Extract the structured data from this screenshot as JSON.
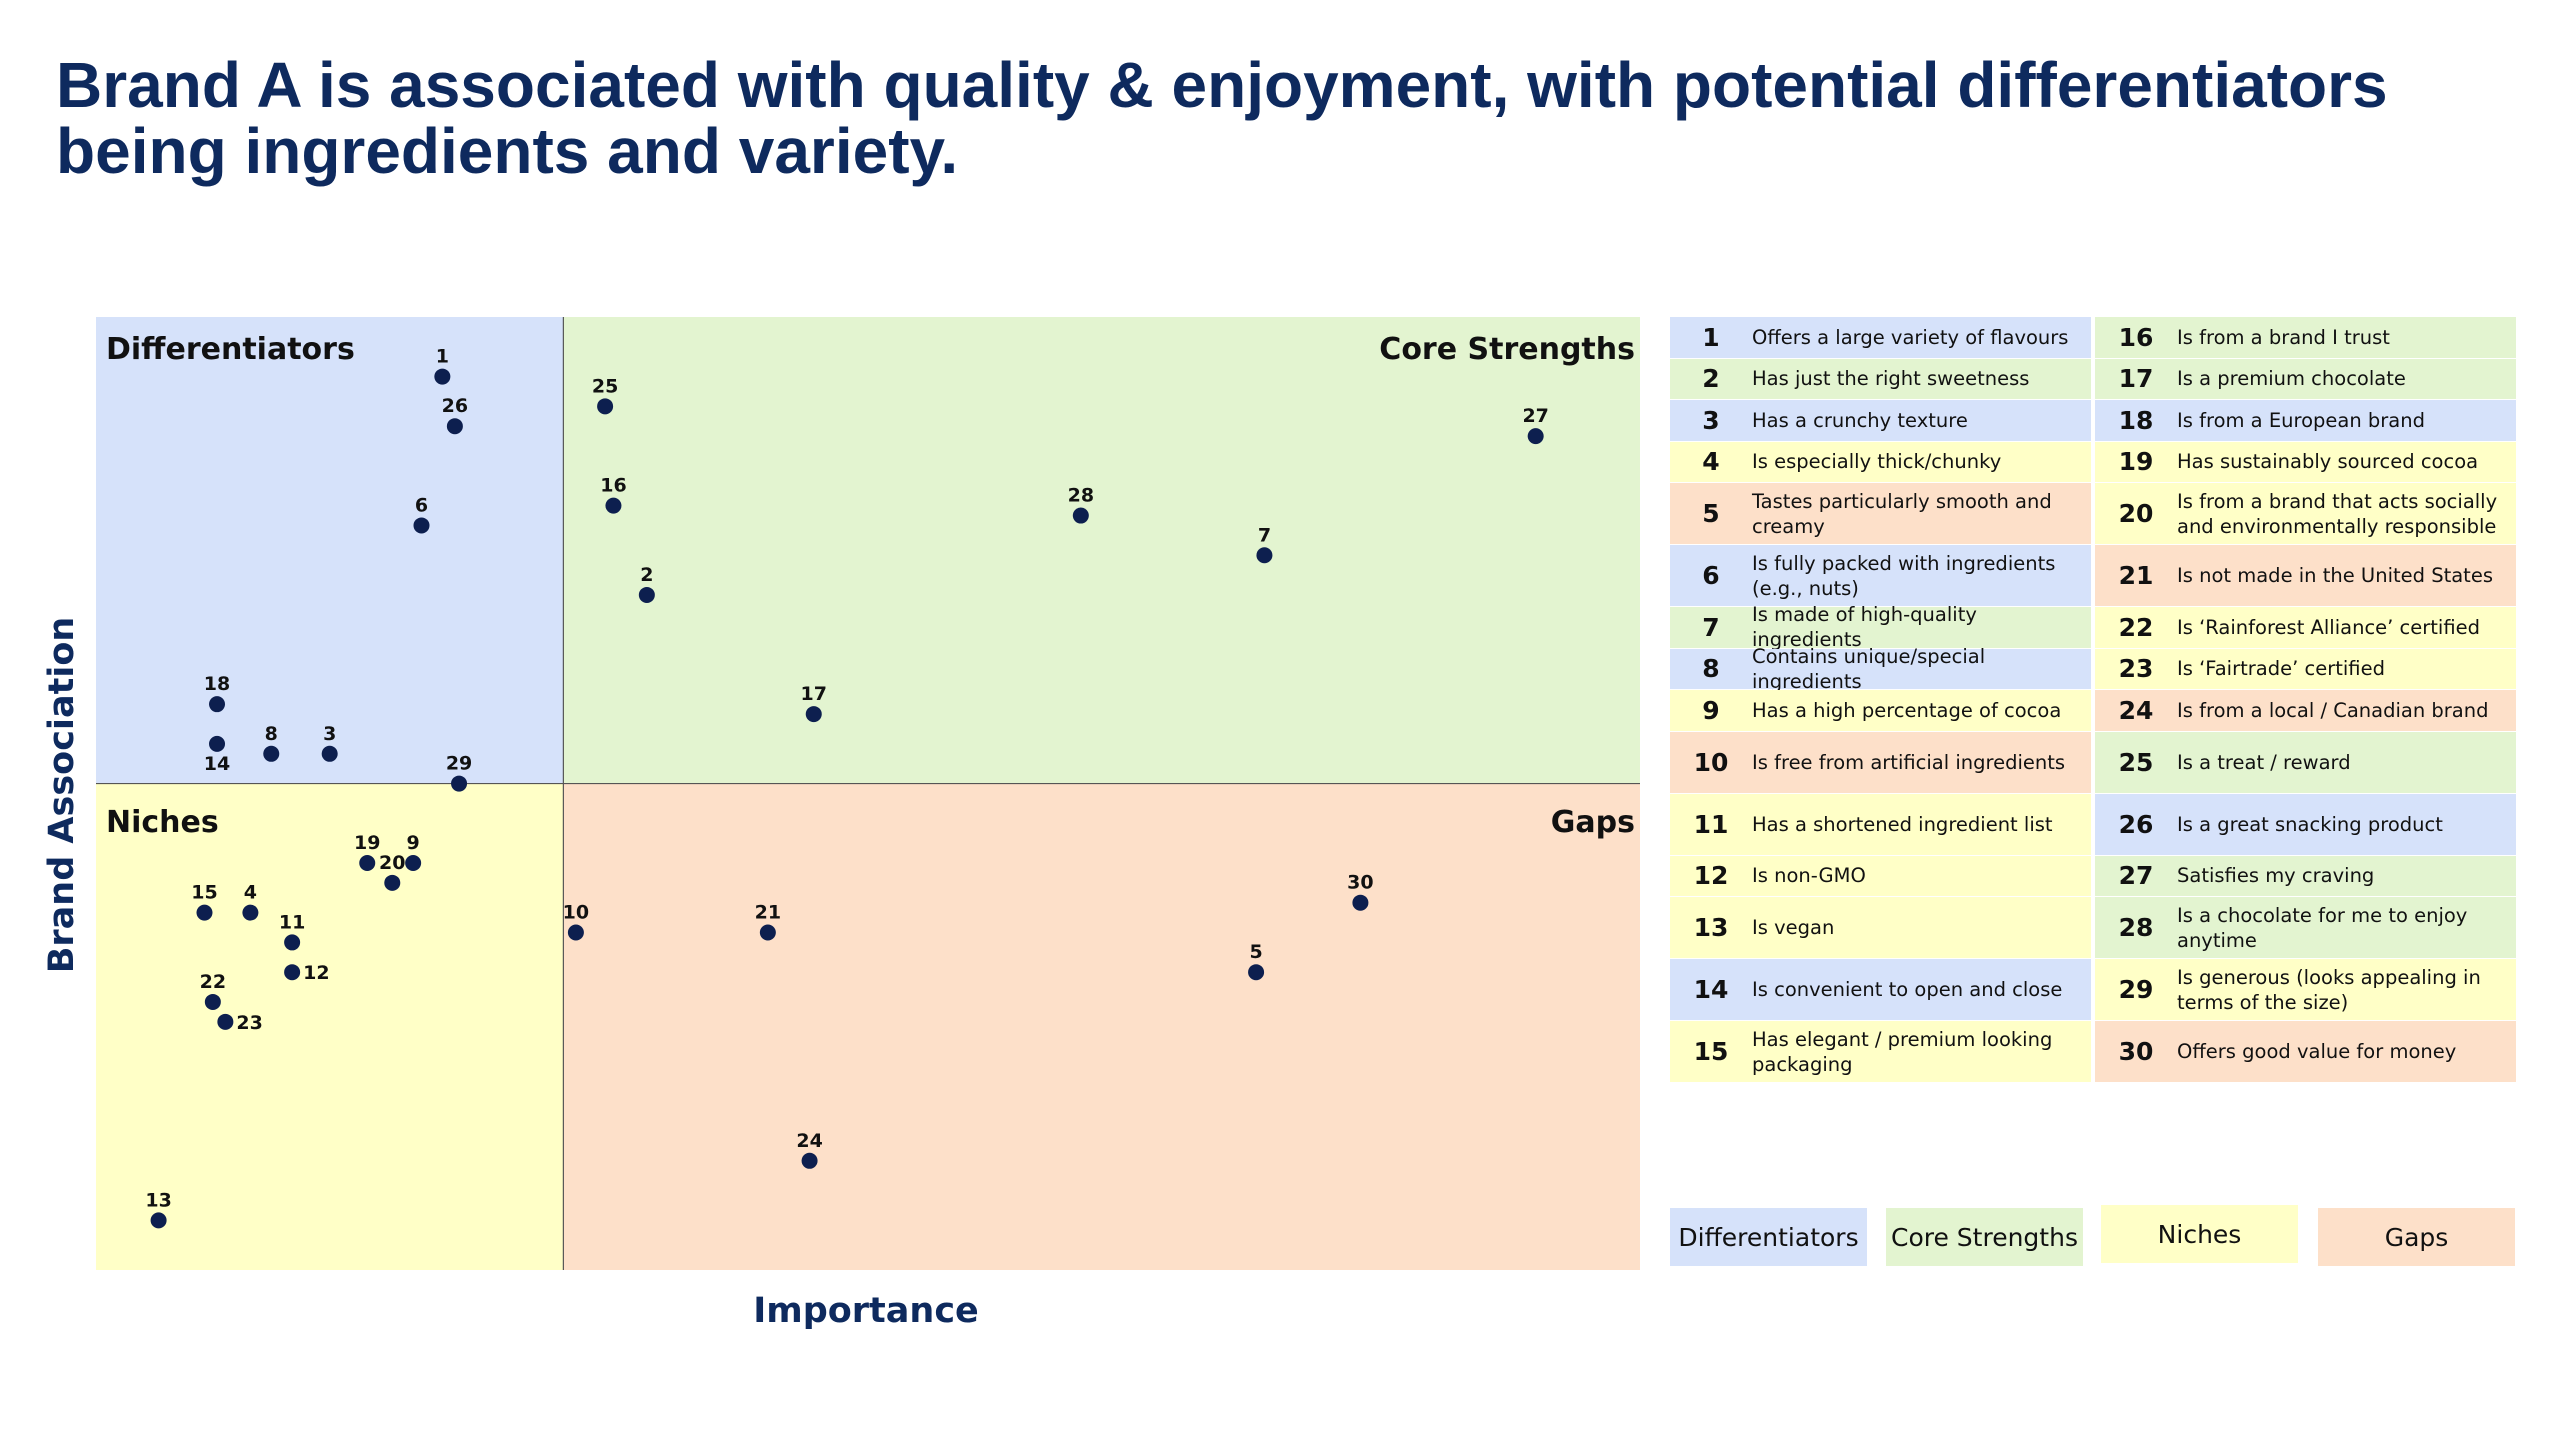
{
  "title": "Brand A is associated with quality & enjoyment, with potential differentiators being ingredients and variety.",
  "colors": {
    "differentiators": "#d6e2fa",
    "core_strengths": "#e3f4d0",
    "niches": "#ffffc7",
    "gaps": "#fde0c9",
    "point": "#0d1f4f",
    "title": "#0e2a5e"
  },
  "chart_data": {
    "type": "scatter",
    "title": "",
    "xlabel": "Importance",
    "ylabel": "Brand Association",
    "quadrant_labels": {
      "top_left": "Differentiators",
      "top_right": "Core Strengths",
      "bottom_left": "Niches",
      "bottom_right": "Gaps"
    },
    "grid": false,
    "points": [
      {
        "id": "1",
        "x": 8.3,
        "y": 9.0
      },
      {
        "id": "2",
        "x": 13.2,
        "y": 6.8
      },
      {
        "id": "3",
        "x": 5.6,
        "y": 5.2
      },
      {
        "id": "4",
        "x": 3.7,
        "y": 3.6
      },
      {
        "id": "5",
        "x": 27.8,
        "y": 3.0
      },
      {
        "id": "6",
        "x": 7.8,
        "y": 7.5
      },
      {
        "id": "7",
        "x": 28.0,
        "y": 7.2
      },
      {
        "id": "8",
        "x": 4.2,
        "y": 5.2
      },
      {
        "id": "9",
        "x": 7.6,
        "y": 4.1
      },
      {
        "id": "10",
        "x": 11.5,
        "y": 3.4
      },
      {
        "id": "11",
        "x": 4.7,
        "y": 3.3
      },
      {
        "id": "12",
        "x": 4.7,
        "y": 3.0
      },
      {
        "id": "13",
        "x": 1.5,
        "y": 0.5
      },
      {
        "id": "14",
        "x": 2.9,
        "y": 5.3
      },
      {
        "id": "15",
        "x": 2.6,
        "y": 3.6
      },
      {
        "id": "16",
        "x": 12.4,
        "y": 7.7
      },
      {
        "id": "17",
        "x": 17.2,
        "y": 5.6
      },
      {
        "id": "18",
        "x": 2.9,
        "y": 5.7
      },
      {
        "id": "19",
        "x": 6.5,
        "y": 4.1
      },
      {
        "id": "20",
        "x": 7.1,
        "y": 3.9
      },
      {
        "id": "21",
        "x": 16.1,
        "y": 3.4
      },
      {
        "id": "22",
        "x": 2.8,
        "y": 2.7
      },
      {
        "id": "23",
        "x": 3.1,
        "y": 2.5
      },
      {
        "id": "24",
        "x": 17.1,
        "y": 1.1
      },
      {
        "id": "25",
        "x": 12.2,
        "y": 8.7
      },
      {
        "id": "26",
        "x": 8.6,
        "y": 8.5
      },
      {
        "id": "27",
        "x": 34.5,
        "y": 8.4
      },
      {
        "id": "28",
        "x": 23.6,
        "y": 7.6
      },
      {
        "id": "29",
        "x": 8.7,
        "y": 4.9
      },
      {
        "id": "30",
        "x": 30.3,
        "y": 3.7
      }
    ],
    "xlim": [
      0,
      37
    ],
    "ylim": [
      0,
      9.6
    ],
    "x_divider": 11.2,
    "y_divider": 4.9
  },
  "legend_items": [
    {
      "num": "1",
      "text": "Offers a large variety of flavours",
      "group": "differentiators"
    },
    {
      "num": "2",
      "text": "Has just the right sweetness",
      "group": "core_strengths"
    },
    {
      "num": "3",
      "text": "Has a crunchy texture",
      "group": "differentiators"
    },
    {
      "num": "4",
      "text": "Is especially thick/chunky",
      "group": "niches"
    },
    {
      "num": "5",
      "text": "Tastes particularly smooth and creamy",
      "group": "gaps"
    },
    {
      "num": "6",
      "text": "Is fully packed with ingredients (e.g., nuts)",
      "group": "differentiators"
    },
    {
      "num": "7",
      "text": "Is made of high-quality ingredients",
      "group": "core_strengths"
    },
    {
      "num": "8",
      "text": "Contains unique/special ingredients",
      "group": "differentiators"
    },
    {
      "num": "9",
      "text": "Has a high percentage of cocoa",
      "group": "niches"
    },
    {
      "num": "10",
      "text": "Is free from artificial ingredients",
      "group": "gaps"
    },
    {
      "num": "11",
      "text": "Has a shortened ingredient list",
      "group": "niches"
    },
    {
      "num": "12",
      "text": "Is non-GMO",
      "group": "niches"
    },
    {
      "num": "13",
      "text": "Is vegan",
      "group": "niches"
    },
    {
      "num": "14",
      "text": "Is convenient to open and close",
      "group": "differentiators"
    },
    {
      "num": "15",
      "text": "Has elegant / premium looking packaging",
      "group": "niches"
    },
    {
      "num": "16",
      "text": "Is from a brand I trust",
      "group": "core_strengths"
    },
    {
      "num": "17",
      "text": "Is a premium chocolate",
      "group": "core_strengths"
    },
    {
      "num": "18",
      "text": "Is from a European brand",
      "group": "differentiators"
    },
    {
      "num": "19",
      "text": "Has sustainably sourced cocoa",
      "group": "niches"
    },
    {
      "num": "20",
      "text": "Is from a brand that acts socially and environmentally responsible",
      "group": "niches"
    },
    {
      "num": "21",
      "text": "Is not made in the United States",
      "group": "gaps"
    },
    {
      "num": "22",
      "text": "Is ‘Rainforest Alliance’ certified",
      "group": "niches"
    },
    {
      "num": "23",
      "text": "Is ‘Fairtrade’ certified",
      "group": "niches"
    },
    {
      "num": "24",
      "text": "Is from a local / Canadian brand",
      "group": "gaps"
    },
    {
      "num": "25",
      "text": "Is a treat / reward",
      "group": "core_strengths"
    },
    {
      "num": "26",
      "text": "Is a great snacking product",
      "group": "differentiators"
    },
    {
      "num": "27",
      "text": "Satisfies my craving",
      "group": "core_strengths"
    },
    {
      "num": "28",
      "text": "Is a chocolate for me to enjoy anytime",
      "group": "core_strengths"
    },
    {
      "num": "29",
      "text": "Is generous (looks appealing in terms of the size)",
      "group": "niches"
    },
    {
      "num": "30",
      "text": "Offers good value for money",
      "group": "gaps"
    }
  ],
  "key": {
    "differentiators": "Differentiators",
    "core_strengths": "Core Strengths",
    "niches": "Niches",
    "gaps": "Gaps"
  }
}
